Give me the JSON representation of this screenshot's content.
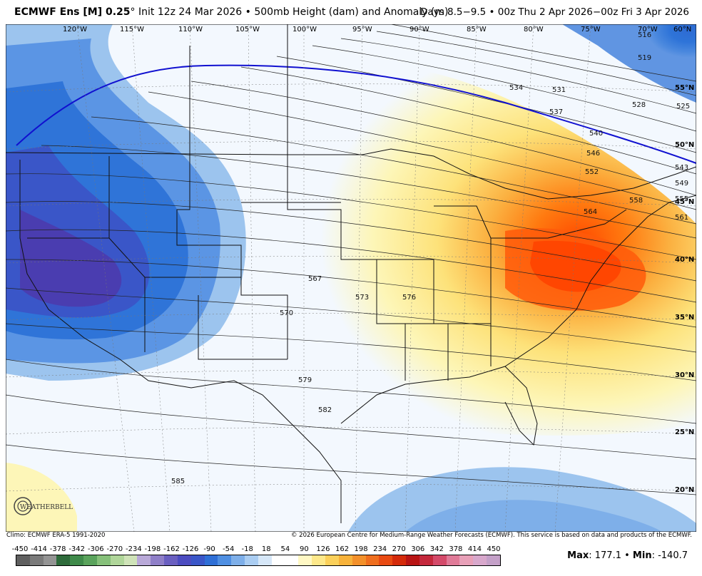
{
  "header": {
    "model": "ECMWF Ens [M] 0.25",
    "degree": "°",
    "init": "Init 12z 24 Mar 2026",
    "product": "500mb Height (dam) and Anomaly (m)",
    "valid": "Days 8.5−9.5 • 00z Thu 2 Apr 2026−00z Fri 3 Apr 2026",
    "separator": "•"
  },
  "map": {
    "longitude_labels": [
      "120°W",
      "115°W",
      "110°W",
      "105°W",
      "100°W",
      "95°W",
      "90°W",
      "85°W",
      "80°W",
      "75°W",
      "70°W",
      "60°N"
    ],
    "latitude_labels": [
      "55°N",
      "50°N",
      "45°N",
      "40°N",
      "35°N",
      "30°N",
      "25°N",
      "20°N"
    ],
    "contour_labels": [
      "516",
      "519",
      "525",
      "528",
      "531",
      "534",
      "537",
      "540",
      "543",
      "546",
      "549",
      "552",
      "555",
      "558",
      "561",
      "564",
      "567",
      "570",
      "573",
      "576",
      "579",
      "582",
      "585"
    ],
    "colors": {
      "strong_negative": "#4a3db0",
      "negative": "#1e6fd4",
      "weak_negative": "#9cc4ee",
      "neutral": "#f3f8fe",
      "weak_positive": "#fdf6b8",
      "positive": "#fbc94e",
      "strong_positive": "#ff5a0a",
      "reference_contour": "#1010d0"
    },
    "logo_text": "WEATHERBELL"
  },
  "footer": {
    "climo": "Climo: ECMWF ERA-5 1991-2020",
    "copyright": "© 2026 European Centre for Medium-Range Weather Forecasts (ECMWF). This service is based on data and products of the ECMWF."
  },
  "colorbar": {
    "ticks": [
      "-450",
      "-414",
      "-378",
      "-342",
      "-306",
      "-270",
      "-234",
      "-198",
      "-162",
      "-126",
      "-90",
      "-54",
      "-18",
      "18",
      "54",
      "90",
      "126",
      "162",
      "198",
      "234",
      "270",
      "306",
      "342",
      "378",
      "414",
      "450"
    ],
    "colors": [
      "#5f5f5f",
      "#7a7a7a",
      "#949494",
      "#2e6b3b",
      "#3f8a4a",
      "#5aa35c",
      "#86c07a",
      "#b0d69a",
      "#cfe3b8",
      "#b9a9d8",
      "#8f7fc8",
      "#6a5fc0",
      "#4c4cc0",
      "#3a56c8",
      "#2f6fd6",
      "#4f8fe2",
      "#7eafe9",
      "#aacdf2",
      "#d6e7f8",
      "#ffffff",
      "#ffffff",
      "#fff8c4",
      "#fde88a",
      "#fbd05a",
      "#f7b23a",
      "#f3902a",
      "#ef6e1e",
      "#e84a12",
      "#d42a0a",
      "#b81414",
      "#c4283c",
      "#d44a6a",
      "#e07a98",
      "#e8a0b8",
      "#d8a8cc",
      "#c4a0c8"
    ]
  },
  "stats": {
    "max_label": "Max",
    "max_value": ": 177.1",
    "separator": " • ",
    "min_label": "Min",
    "min_value": ": -140.7"
  }
}
